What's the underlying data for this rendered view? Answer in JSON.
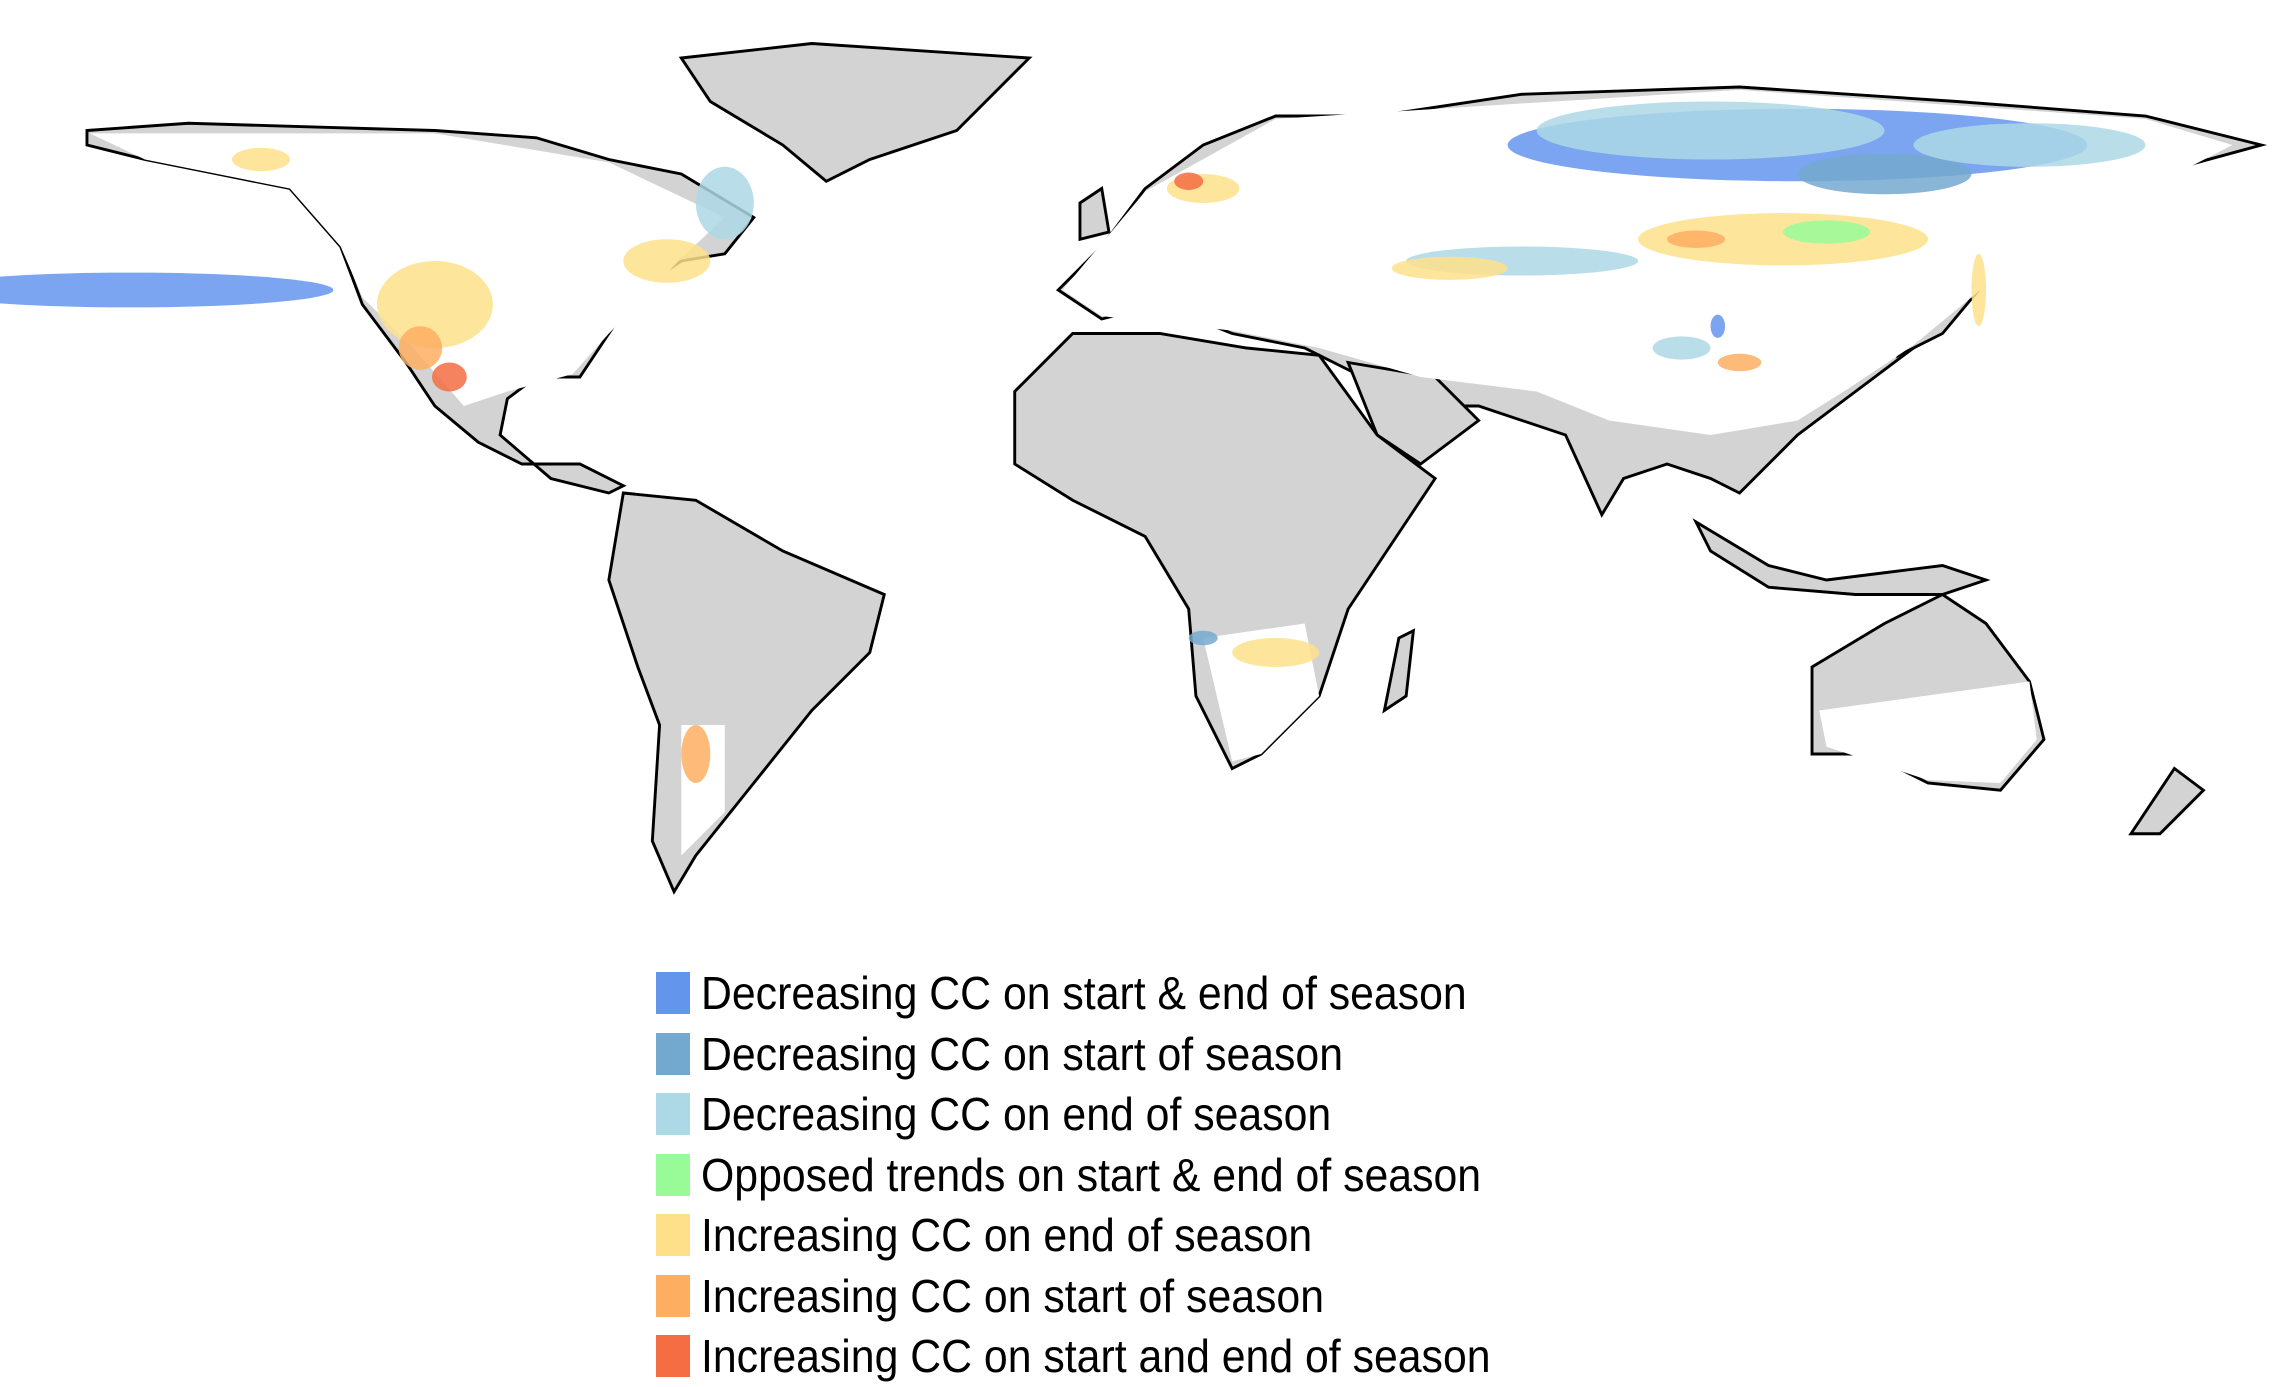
{
  "map": {
    "land_color": "#d3d3d3",
    "no_trend_color": "#ffffff",
    "outline_color": "#000000"
  },
  "legend": {
    "items": [
      {
        "label": "Decreasing CC on start & end of season",
        "color": "#6495ed"
      },
      {
        "label": "Decreasing CC on start of season",
        "color": "#74a9cf"
      },
      {
        "label": "Decreasing CC on end of season",
        "color": "#add8e6"
      },
      {
        "label": "Opposed trends on start & end of season",
        "color": "#98fb98"
      },
      {
        "label": "Increasing CC on end of season",
        "color": "#fee08b"
      },
      {
        "label": "Increasing CC on start of season",
        "color": "#fdae61"
      },
      {
        "label": "Increasing CC on start and end of season",
        "color": "#f46d43"
      }
    ]
  }
}
